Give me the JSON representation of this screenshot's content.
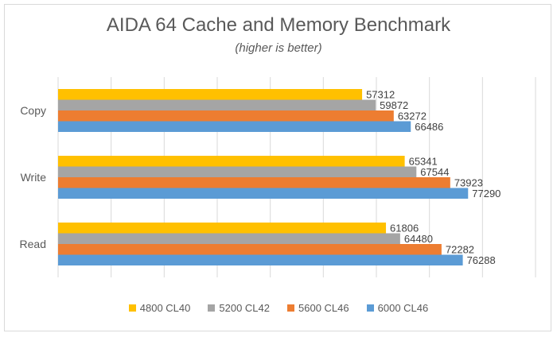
{
  "chart_data": {
    "type": "bar",
    "orientation": "horizontal",
    "title": "AIDA 64 Cache and Memory Benchmark",
    "subtitle": "(higher is better)",
    "categories": [
      "Copy",
      "Write",
      "Read"
    ],
    "xlim": [
      0,
      90000
    ],
    "grid": true,
    "legend_position": "bottom",
    "series": [
      {
        "name": "4800 CL40",
        "color": "#ffc000",
        "values": [
          57312,
          65341,
          61806
        ]
      },
      {
        "name": "5200 CL42",
        "color": "#a5a5a5",
        "values": [
          59872,
          67544,
          64480
        ]
      },
      {
        "name": "5600 CL46",
        "color": "#ed7d31",
        "values": [
          63272,
          73923,
          72282
        ]
      },
      {
        "name": "6000 CL46",
        "color": "#5b9bd5",
        "values": [
          66486,
          77290,
          76288
        ]
      }
    ]
  }
}
